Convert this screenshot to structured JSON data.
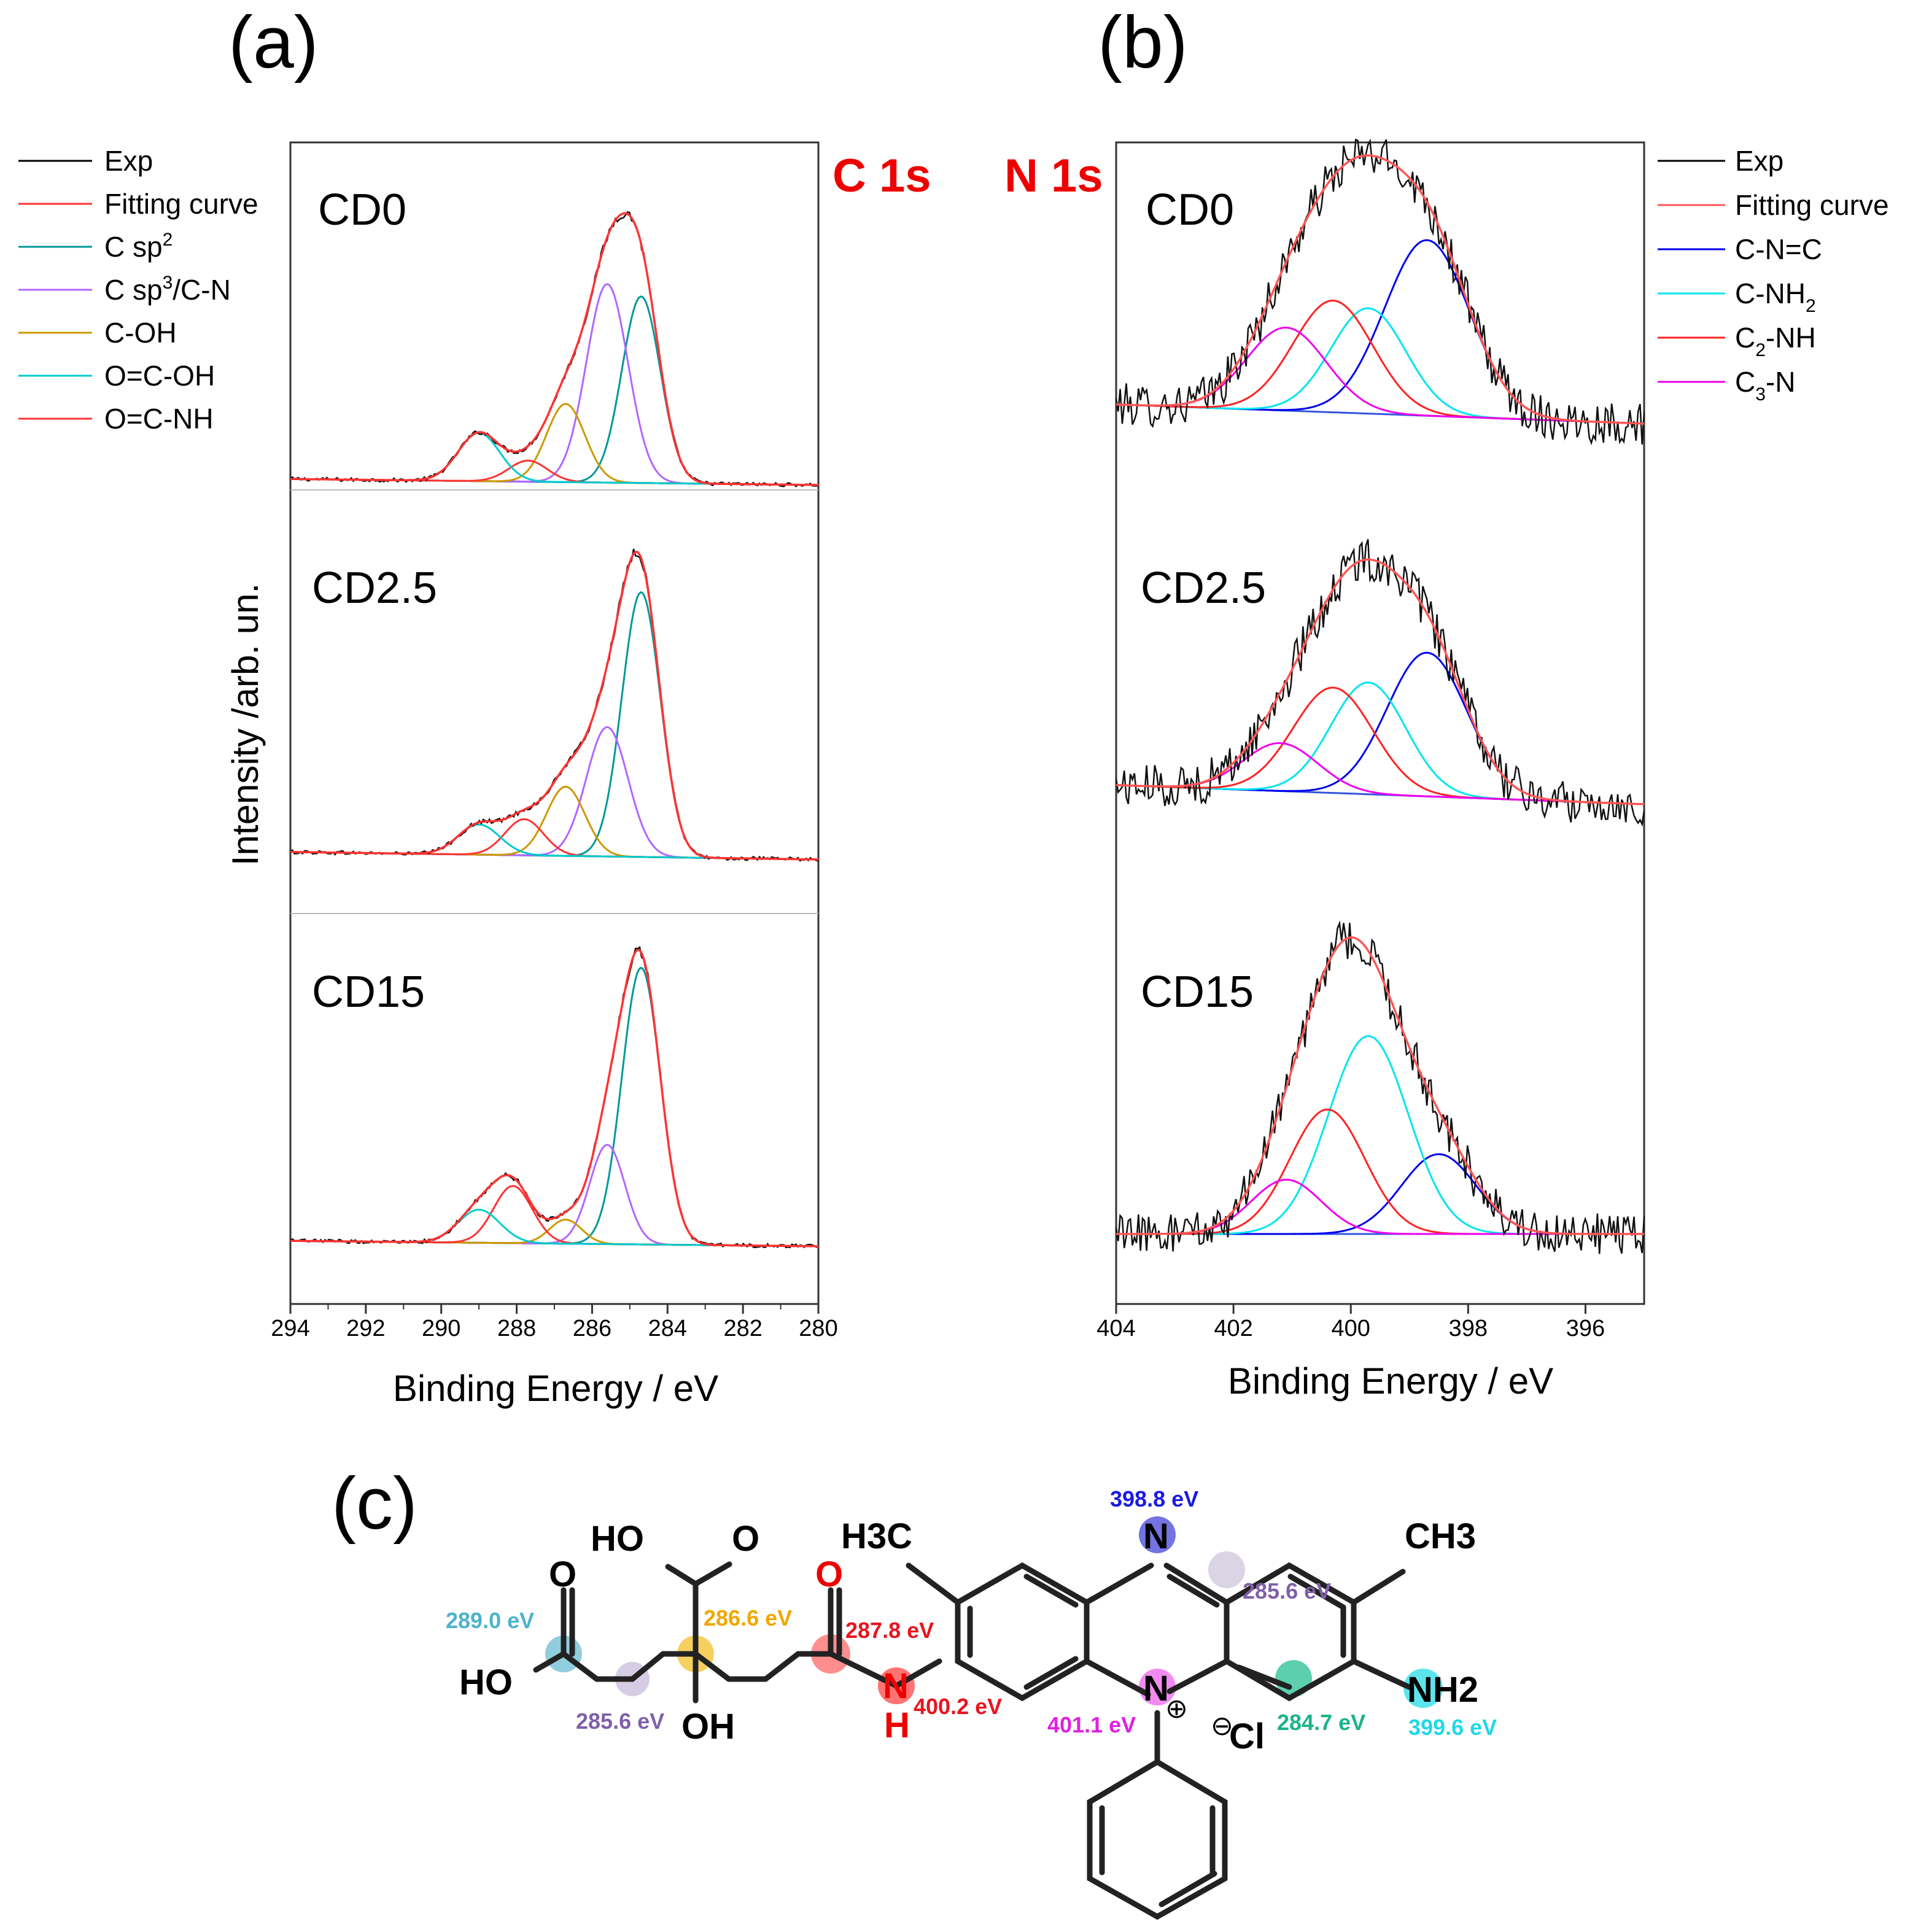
{
  "chart_data": [
    {
      "id": "a",
      "type": "line",
      "panel_label": "(a)",
      "core_level": "C 1s",
      "xlabel": "Binding Energy / eV",
      "ylabel": "Intensity /arb. un.",
      "xlim": [
        294,
        280
      ],
      "xticks": [
        "294",
        "292",
        "290",
        "288",
        "286",
        "284",
        "282",
        "280"
      ],
      "legend": [
        {
          "name": "Exp",
          "color": "#000000"
        },
        {
          "name": "Fitting curve",
          "color": "#ff3333"
        },
        {
          "name": "C sp",
          "sup": "2",
          "color": "#009999"
        },
        {
          "name": "C sp",
          "sup": "3",
          "suffix": "/C-N",
          "color": "#b266ff"
        },
        {
          "name": "C-OH",
          "color": "#cc9900"
        },
        {
          "name": "O=C-OH",
          "color": "#00cccc"
        },
        {
          "name": "O=C-NH",
          "color": "#ff3333"
        }
      ],
      "samples": [
        {
          "name": "CD0",
          "peaks": [
            {
              "component": "C sp2",
              "center": 284.7,
              "height": 0.62,
              "fwhm": 1.2
            },
            {
              "component": "C sp3/C-N",
              "center": 285.6,
              "height": 0.66,
              "fwhm": 1.3
            },
            {
              "component": "C-OH",
              "center": 286.7,
              "height": 0.26,
              "fwhm": 1.2
            },
            {
              "component": "O=C-NH",
              "center": 287.7,
              "height": 0.07,
              "fwhm": 1.2
            },
            {
              "component": "O=C-OH",
              "center": 289.0,
              "height": 0.16,
              "fwhm": 1.3
            }
          ]
        },
        {
          "name": "CD2.5",
          "peaks": [
            {
              "component": "C sp2",
              "center": 284.7,
              "height": 0.88,
              "fwhm": 1.2
            },
            {
              "component": "C sp3/C-N",
              "center": 285.6,
              "height": 0.43,
              "fwhm": 1.3
            },
            {
              "component": "C-OH",
              "center": 286.7,
              "height": 0.23,
              "fwhm": 1.2
            },
            {
              "component": "O=C-NH",
              "center": 287.8,
              "height": 0.12,
              "fwhm": 1.2
            },
            {
              "component": "O=C-OH",
              "center": 289.0,
              "height": 0.1,
              "fwhm": 1.3
            }
          ]
        },
        {
          "name": "CD15",
          "peaks": [
            {
              "component": "C sp2",
              "center": 284.7,
              "height": 0.92,
              "fwhm": 1.2
            },
            {
              "component": "C sp3/C-N",
              "center": 285.6,
              "height": 0.33,
              "fwhm": 1.1
            },
            {
              "component": "C-OH",
              "center": 286.7,
              "height": 0.08,
              "fwhm": 1.0
            },
            {
              "component": "O=C-NH",
              "center": 288.1,
              "height": 0.19,
              "fwhm": 1.2
            },
            {
              "component": "O=C-OH",
              "center": 289.0,
              "height": 0.11,
              "fwhm": 1.3
            }
          ]
        }
      ]
    },
    {
      "id": "b",
      "type": "line",
      "panel_label": "(b)",
      "core_level": "N 1s",
      "xlabel": "Binding Energy / eV",
      "xlim": [
        404,
        395
      ],
      "xticks": [
        "404",
        "402",
        "400",
        "398",
        "396"
      ],
      "legend": [
        {
          "name": "Exp",
          "color": "#000000"
        },
        {
          "name": "Fitting curve",
          "color": "#ff5555"
        },
        {
          "name": "C-N=C",
          "color": "#0000ee"
        },
        {
          "name": "C-NH",
          "sub": "2",
          "color": "#00e5ee"
        },
        {
          "name": "C",
          "sub": "2",
          "suffix": "-NH",
          "color": "#ff2222"
        },
        {
          "name": "C",
          "sub": "3",
          "suffix": "-N",
          "color": "#ee00ee"
        }
      ],
      "samples": [
        {
          "name": "CD0",
          "peaks": [
            {
              "component": "C-N=C",
              "center": 398.7,
              "height": 0.55,
              "fwhm": 1.7
            },
            {
              "component": "C-NH2",
              "center": 399.7,
              "height": 0.33,
              "fwhm": 1.5
            },
            {
              "component": "C2-NH",
              "center": 400.3,
              "height": 0.35,
              "fwhm": 1.6
            },
            {
              "component": "C3-N",
              "center": 401.1,
              "height": 0.26,
              "fwhm": 1.6
            }
          ]
        },
        {
          "name": "CD2.5",
          "peaks": [
            {
              "component": "C-N=C",
              "center": 398.7,
              "height": 0.45,
              "fwhm": 1.6
            },
            {
              "component": "C-NH2",
              "center": 399.7,
              "height": 0.35,
              "fwhm": 1.5
            },
            {
              "component": "C2-NH",
              "center": 400.3,
              "height": 0.33,
              "fwhm": 1.6
            },
            {
              "component": "C3-N",
              "center": 401.2,
              "height": 0.15,
              "fwhm": 1.5
            }
          ]
        },
        {
          "name": "CD15",
          "peaks": [
            {
              "component": "C-N=C",
              "center": 398.5,
              "height": 0.25,
              "fwhm": 1.5
            },
            {
              "component": "C-NH2",
              "center": 399.7,
              "height": 0.62,
              "fwhm": 1.6
            },
            {
              "component": "C2-NH",
              "center": 400.4,
              "height": 0.39,
              "fwhm": 1.5
            },
            {
              "component": "C3-N",
              "center": 401.1,
              "height": 0.17,
              "fwhm": 1.4
            }
          ]
        }
      ]
    }
  ],
  "structure": {
    "panel_label": "(c)",
    "atom_labels": {
      "o_left": "O",
      "ho_left": "HO",
      "ho_top": "HO",
      "o_top": "O",
      "oh_mid": "OH",
      "o_amide": "O",
      "n_amide": "N",
      "h_amide": "H",
      "h3c": "H3C",
      "n_top": "N",
      "ch3": "CH3",
      "n_plus": "N",
      "plus": "⊕",
      "minus": "⊖",
      "cl": "Cl",
      "nh2": "NH2"
    },
    "energies": [
      {
        "label": "289.0 eV",
        "color": "#4db3cc",
        "circle": "#7fc4d8"
      },
      {
        "label": "285.6 eV",
        "color": "#8060a8",
        "circle": "#cfc4df"
      },
      {
        "label": "286.6 eV",
        "color": "#f0a800",
        "circle": "#f5c842"
      },
      {
        "label": "287.8 eV",
        "color": "#e8141e",
        "circle": "#ff7a7a"
      },
      {
        "label": "400.2 eV",
        "color": "#e8141e",
        "circle": "#ff5a5a"
      },
      {
        "label": "398.8 eV",
        "color": "#1a1ae6",
        "circle": "#5a5add"
      },
      {
        "label": "285.6 eV",
        "color": "#8060a8",
        "circle": "#d4cce0"
      },
      {
        "label": "401.1 eV",
        "color": "#e020e0",
        "circle": "#ee77ee"
      },
      {
        "label": "284.7 eV",
        "color": "#1ab48c",
        "circle": "#40c8a0"
      },
      {
        "label": "399.6 eV",
        "color": "#20d8e8",
        "circle": "#40e0ea"
      }
    ]
  }
}
